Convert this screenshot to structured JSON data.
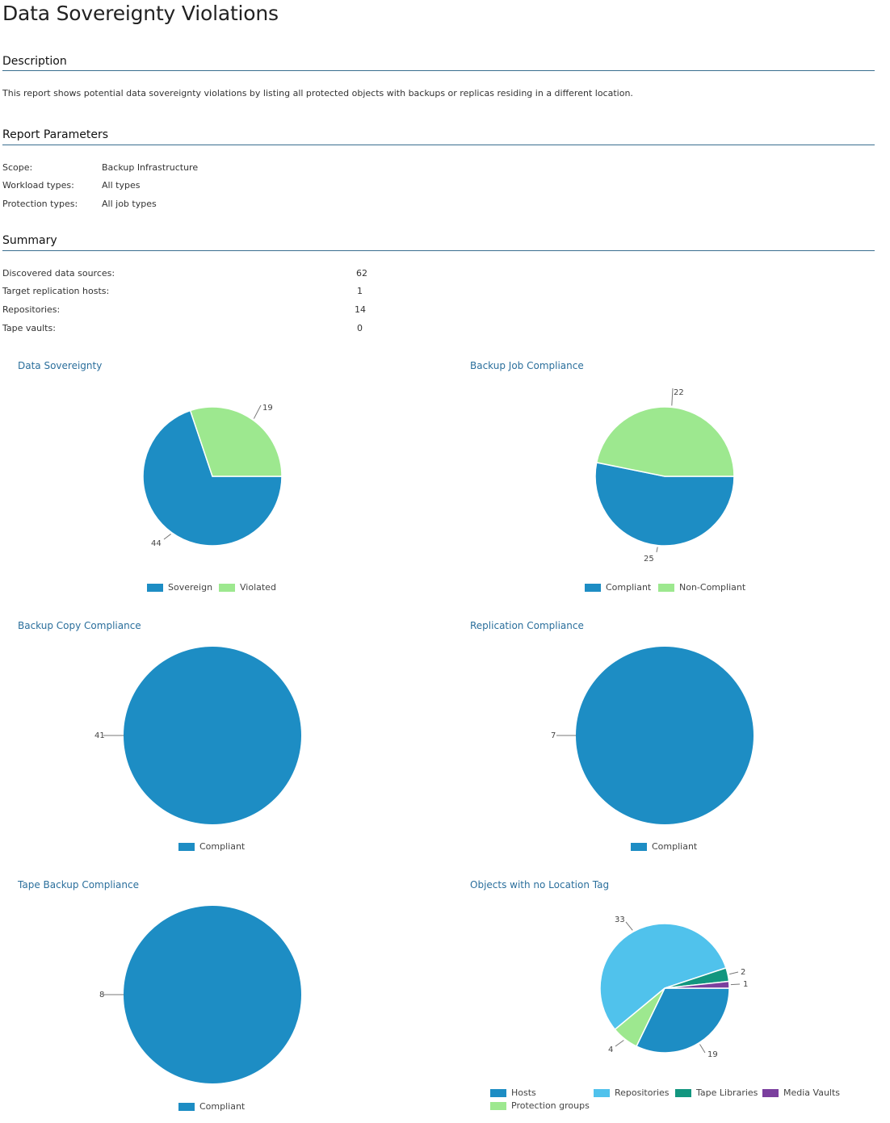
{
  "report": {
    "title": "Data Sovereignty Violations",
    "description_heading": "Description",
    "description": "This report shows potential data sovereignty violations by listing all protected objects with backups or replicas residing in a different location.",
    "parameters_heading": "Report Parameters",
    "parameters": [
      {
        "label": "Scope:",
        "value": "Backup Infrastructure"
      },
      {
        "label": "Workload types:",
        "value": "All types"
      },
      {
        "label": "Protection types:",
        "value": "All job types"
      }
    ],
    "summary_heading": "Summary",
    "summary": [
      {
        "label": "Discovered data sources:",
        "value": "62"
      },
      {
        "label": "Target replication hosts:",
        "value": "1"
      },
      {
        "label": "Repositories:",
        "value": "14"
      },
      {
        "label": "Tape vaults:",
        "value": "0"
      }
    ]
  },
  "colors": {
    "blue": "#1d8dc4",
    "light_green": "#9de88f",
    "light_blue": "#50c2ec",
    "teal": "#12967f",
    "purple": "#7b3f9e",
    "heading_rule": "#3a6e8f",
    "chart_title": "#2b6f9c"
  },
  "chart_data": [
    {
      "type": "pie",
      "title": "Data Sovereignty",
      "categories": [
        "Sovereign",
        "Violated"
      ],
      "values": [
        44,
        19
      ],
      "colors": [
        "#1d8dc4",
        "#9de88f"
      ],
      "legend": "bottom"
    },
    {
      "type": "pie",
      "title": "Backup Job Compliance",
      "categories": [
        "Compliant",
        "Non-Compliant"
      ],
      "values": [
        25,
        22
      ],
      "colors": [
        "#1d8dc4",
        "#9de88f"
      ],
      "legend": "bottom"
    },
    {
      "type": "pie",
      "title": "Backup Copy Compliance",
      "categories": [
        "Compliant"
      ],
      "values": [
        41
      ],
      "colors": [
        "#1d8dc4"
      ],
      "legend": "bottom"
    },
    {
      "type": "pie",
      "title": "Replication Compliance",
      "categories": [
        "Compliant"
      ],
      "values": [
        7
      ],
      "colors": [
        "#1d8dc4"
      ],
      "legend": "bottom"
    },
    {
      "type": "pie",
      "title": "Tape Backup Compliance",
      "categories": [
        "Compliant"
      ],
      "values": [
        8
      ],
      "colors": [
        "#1d8dc4"
      ],
      "legend": "bottom"
    },
    {
      "type": "pie",
      "title": "Objects with no Location Tag",
      "categories": [
        "Hosts",
        "Repositories",
        "Tape Libraries",
        "Media Vaults",
        "Protection groups"
      ],
      "values": [
        19,
        33,
        2,
        1,
        4
      ],
      "colors": [
        "#1d8dc4",
        "#50c2ec",
        "#12967f",
        "#7b3f9e",
        "#9de88f"
      ],
      "legend": "bottom"
    }
  ]
}
